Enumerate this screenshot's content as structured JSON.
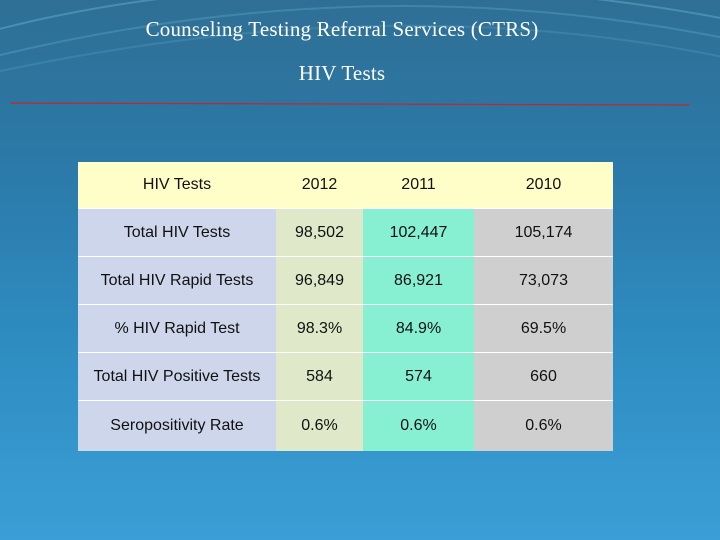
{
  "slide": {
    "title_line1": "Counseling Testing Referral Services (CTRS)",
    "title_line2": "HIV Tests"
  },
  "table": {
    "headers": [
      "HIV Tests",
      "2012",
      "2011",
      "2010"
    ],
    "rows": [
      [
        "Total HIV Tests",
        "98,502",
        "102,447",
        "105,174"
      ],
      [
        "Total HIV Rapid Tests",
        "96,849",
        "86,921",
        "73,073"
      ],
      [
        "% HIV Rapid Test",
        "98.3%",
        "84.9%",
        "69.5%"
      ],
      [
        "Total HIV Positive Tests",
        "584",
        "574",
        "660"
      ],
      [
        "Seropositivity Rate",
        "0.6%",
        "0.6%",
        "0.6%"
      ]
    ]
  },
  "colors": {
    "header_bg": "#fffdc8",
    "label_col_bg": "#cdd6ea",
    "col_2012_bg": "#dfe8c8",
    "col_2011_bg": "#87f0d2",
    "col_2010_bg": "#cfcfcf",
    "rule": "#c0292b"
  }
}
